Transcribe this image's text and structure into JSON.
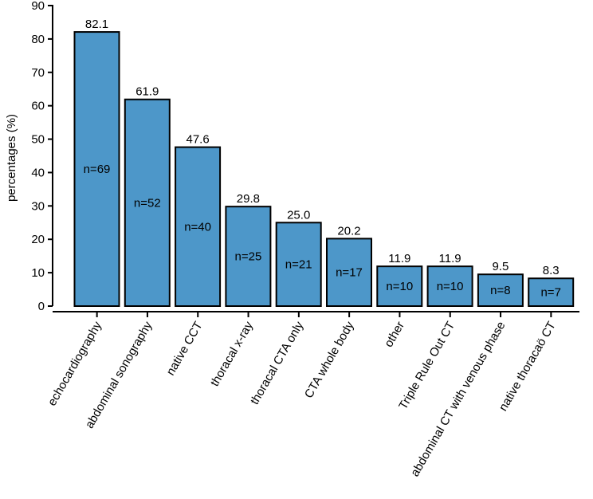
{
  "chart_data": {
    "type": "bar",
    "ylabel": "percentages (%)",
    "xlabel": "",
    "ylim": [
      0,
      90
    ],
    "yticks": [
      0,
      10,
      20,
      30,
      40,
      50,
      60,
      70,
      80,
      90
    ],
    "grid": false,
    "bar_color": "#4d97c9",
    "bar_edge_color": "#000000",
    "categories": [
      "echocardiography",
      "abdominal sonography",
      "native CCT",
      "thoracal x-ray",
      "thoracal CTA only",
      "CTA whole body",
      "other",
      "Triple Rule Out CT",
      "abdominal CT with venous phase",
      "native thoracaö CT"
    ],
    "values": [
      82.1,
      61.9,
      47.6,
      29.8,
      25.0,
      20.2,
      11.9,
      11.9,
      9.5,
      8.3
    ],
    "value_labels": [
      "82.1",
      "61.9",
      "47.6",
      "29.8",
      "25.0",
      "20.2",
      "11.9",
      "11.9",
      "9.5",
      "8.3"
    ],
    "counts": [
      "n=69",
      "n=52",
      "n=40",
      "n=25",
      "n=21",
      "n=17",
      "n=10",
      "n=10",
      "n=8",
      "n=7"
    ]
  }
}
